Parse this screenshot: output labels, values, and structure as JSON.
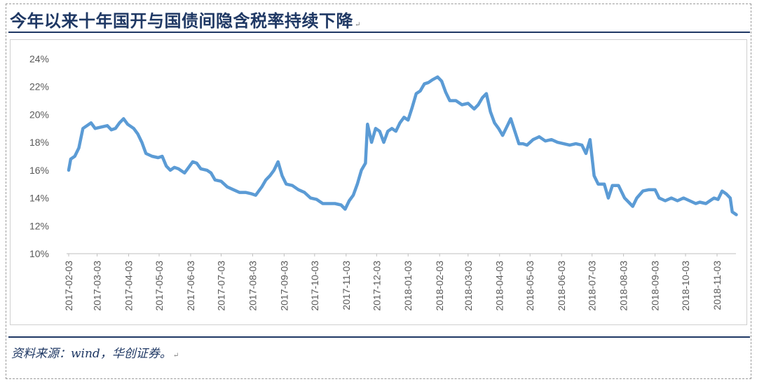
{
  "title": "今年以来十年国开与国债间隐含税率持续下降",
  "source": "资料来源：wind，华创证券。",
  "colors": {
    "line": "#5b9bd5",
    "title": "#1f3864",
    "axis": "#595959"
  },
  "chart_data": {
    "type": "line",
    "ylim": [
      10,
      24
    ],
    "y_ticks": [
      "10%",
      "12%",
      "14%",
      "16%",
      "18%",
      "20%",
      "22%",
      "24%"
    ],
    "y_tick_values": [
      10,
      12,
      14,
      16,
      18,
      20,
      22,
      24
    ],
    "x_range": [
      "2017-02-03",
      "2018-11-23"
    ],
    "x_ticks": [
      "2017-02-03",
      "2017-03-03",
      "2017-04-03",
      "2017-05-03",
      "2017-06-03",
      "2017-07-03",
      "2017-08-03",
      "2017-09-03",
      "2017-10-03",
      "2017-11-03",
      "2017-12-03",
      "2018-01-03",
      "2018-02-03",
      "2018-03-03",
      "2018-04-03",
      "2018-05-03",
      "2018-06-03",
      "2018-07-03",
      "2018-08-03",
      "2018-09-03",
      "2018-10-03",
      "2018-11-03"
    ],
    "grid": false,
    "legend": "none",
    "series": [
      {
        "points": [
          [
            "2017-02-03",
            16.0
          ],
          [
            "2017-02-05",
            16.8
          ],
          [
            "2017-02-09",
            17.0
          ],
          [
            "2017-02-13",
            17.6
          ],
          [
            "2017-02-17",
            19.0
          ],
          [
            "2017-02-21",
            19.2
          ],
          [
            "2017-02-25",
            19.4
          ],
          [
            "2017-03-01",
            19.0
          ],
          [
            "2017-03-07",
            19.1
          ],
          [
            "2017-03-13",
            19.2
          ],
          [
            "2017-03-17",
            18.9
          ],
          [
            "2017-03-21",
            19.0
          ],
          [
            "2017-03-25",
            19.4
          ],
          [
            "2017-03-29",
            19.7
          ],
          [
            "2017-04-02",
            19.3
          ],
          [
            "2017-04-08",
            19.0
          ],
          [
            "2017-04-12",
            18.6
          ],
          [
            "2017-04-16",
            18.0
          ],
          [
            "2017-04-20",
            17.2
          ],
          [
            "2017-04-26",
            17.0
          ],
          [
            "2017-05-02",
            16.9
          ],
          [
            "2017-05-06",
            17.0
          ],
          [
            "2017-05-10",
            16.3
          ],
          [
            "2017-05-14",
            16.0
          ],
          [
            "2017-05-18",
            16.2
          ],
          [
            "2017-05-22",
            16.1
          ],
          [
            "2017-05-28",
            15.8
          ],
          [
            "2017-06-01",
            16.2
          ],
          [
            "2017-06-05",
            16.6
          ],
          [
            "2017-06-09",
            16.5
          ],
          [
            "2017-06-13",
            16.1
          ],
          [
            "2017-06-19",
            16.0
          ],
          [
            "2017-06-23",
            15.8
          ],
          [
            "2017-06-27",
            15.3
          ],
          [
            "2017-07-03",
            15.2
          ],
          [
            "2017-07-09",
            14.8
          ],
          [
            "2017-07-15",
            14.6
          ],
          [
            "2017-07-21",
            14.4
          ],
          [
            "2017-07-27",
            14.4
          ],
          [
            "2017-08-02",
            14.3
          ],
          [
            "2017-08-06",
            14.2
          ],
          [
            "2017-08-12",
            14.8
          ],
          [
            "2017-08-16",
            15.3
          ],
          [
            "2017-08-20",
            15.6
          ],
          [
            "2017-08-24",
            16.0
          ],
          [
            "2017-08-28",
            16.6
          ],
          [
            "2017-09-01",
            15.6
          ],
          [
            "2017-09-05",
            15.0
          ],
          [
            "2017-09-11",
            14.9
          ],
          [
            "2017-09-17",
            14.6
          ],
          [
            "2017-09-23",
            14.4
          ],
          [
            "2017-09-29",
            14.0
          ],
          [
            "2017-10-05",
            13.9
          ],
          [
            "2017-10-11",
            13.6
          ],
          [
            "2017-10-17",
            13.6
          ],
          [
            "2017-10-23",
            13.6
          ],
          [
            "2017-10-29",
            13.5
          ],
          [
            "2017-11-02",
            13.2
          ],
          [
            "2017-11-06",
            13.8
          ],
          [
            "2017-11-10",
            14.2
          ],
          [
            "2017-11-14",
            15.0
          ],
          [
            "2017-11-18",
            16.0
          ],
          [
            "2017-11-22",
            16.5
          ],
          [
            "2017-11-24",
            19.3
          ],
          [
            "2017-11-28",
            18.0
          ],
          [
            "2017-12-02",
            19.0
          ],
          [
            "2017-12-06",
            18.8
          ],
          [
            "2017-12-10",
            18.0
          ],
          [
            "2017-12-14",
            18.8
          ],
          [
            "2017-12-18",
            19.0
          ],
          [
            "2017-12-22",
            18.8
          ],
          [
            "2017-12-26",
            19.4
          ],
          [
            "2017-12-30",
            19.8
          ],
          [
            "2018-01-03",
            19.6
          ],
          [
            "2018-01-07",
            20.5
          ],
          [
            "2018-01-11",
            21.5
          ],
          [
            "2018-01-15",
            21.7
          ],
          [
            "2018-01-19",
            22.2
          ],
          [
            "2018-01-23",
            22.3
          ],
          [
            "2018-01-27",
            22.5
          ],
          [
            "2018-02-01",
            22.7
          ],
          [
            "2018-02-05",
            22.4
          ],
          [
            "2018-02-09",
            21.6
          ],
          [
            "2018-02-13",
            21.0
          ],
          [
            "2018-02-19",
            21.0
          ],
          [
            "2018-02-25",
            20.7
          ],
          [
            "2018-03-03",
            20.8
          ],
          [
            "2018-03-09",
            20.4
          ],
          [
            "2018-03-13",
            20.7
          ],
          [
            "2018-03-17",
            21.2
          ],
          [
            "2018-03-21",
            21.5
          ],
          [
            "2018-03-25",
            20.2
          ],
          [
            "2018-03-29",
            19.4
          ],
          [
            "2018-04-02",
            19.0
          ],
          [
            "2018-04-06",
            18.5
          ],
          [
            "2018-04-10",
            19.1
          ],
          [
            "2018-04-14",
            19.7
          ],
          [
            "2018-04-18",
            18.8
          ],
          [
            "2018-04-22",
            17.9
          ],
          [
            "2018-04-26",
            17.9
          ],
          [
            "2018-04-30",
            17.8
          ],
          [
            "2018-05-06",
            18.2
          ],
          [
            "2018-05-12",
            18.4
          ],
          [
            "2018-05-18",
            18.1
          ],
          [
            "2018-05-24",
            18.2
          ],
          [
            "2018-05-30",
            18.0
          ],
          [
            "2018-06-05",
            17.9
          ],
          [
            "2018-06-11",
            17.8
          ],
          [
            "2018-06-17",
            17.9
          ],
          [
            "2018-06-23",
            17.8
          ],
          [
            "2018-06-27",
            17.2
          ],
          [
            "2018-07-01",
            18.2
          ],
          [
            "2018-07-05",
            15.6
          ],
          [
            "2018-07-09",
            15.0
          ],
          [
            "2018-07-15",
            15.0
          ],
          [
            "2018-07-19",
            14.0
          ],
          [
            "2018-07-23",
            14.9
          ],
          [
            "2018-07-29",
            14.9
          ],
          [
            "2018-08-04",
            14.0
          ],
          [
            "2018-08-08",
            13.7
          ],
          [
            "2018-08-12",
            13.4
          ],
          [
            "2018-08-16",
            14.0
          ],
          [
            "2018-08-22",
            14.5
          ],
          [
            "2018-08-28",
            14.6
          ],
          [
            "2018-09-03",
            14.6
          ],
          [
            "2018-09-07",
            14.0
          ],
          [
            "2018-09-13",
            13.8
          ],
          [
            "2018-09-19",
            14.0
          ],
          [
            "2018-09-25",
            13.8
          ],
          [
            "2018-10-01",
            14.0
          ],
          [
            "2018-10-07",
            13.8
          ],
          [
            "2018-10-13",
            13.6
          ],
          [
            "2018-10-17",
            13.7
          ],
          [
            "2018-10-23",
            13.6
          ],
          [
            "2018-10-27",
            13.8
          ],
          [
            "2018-10-31",
            14.0
          ],
          [
            "2018-11-04",
            13.9
          ],
          [
            "2018-11-08",
            14.5
          ],
          [
            "2018-11-12",
            14.3
          ],
          [
            "2018-11-16",
            14.0
          ],
          [
            "2018-11-18",
            13.0
          ],
          [
            "2018-11-22",
            12.8
          ]
        ]
      }
    ]
  }
}
